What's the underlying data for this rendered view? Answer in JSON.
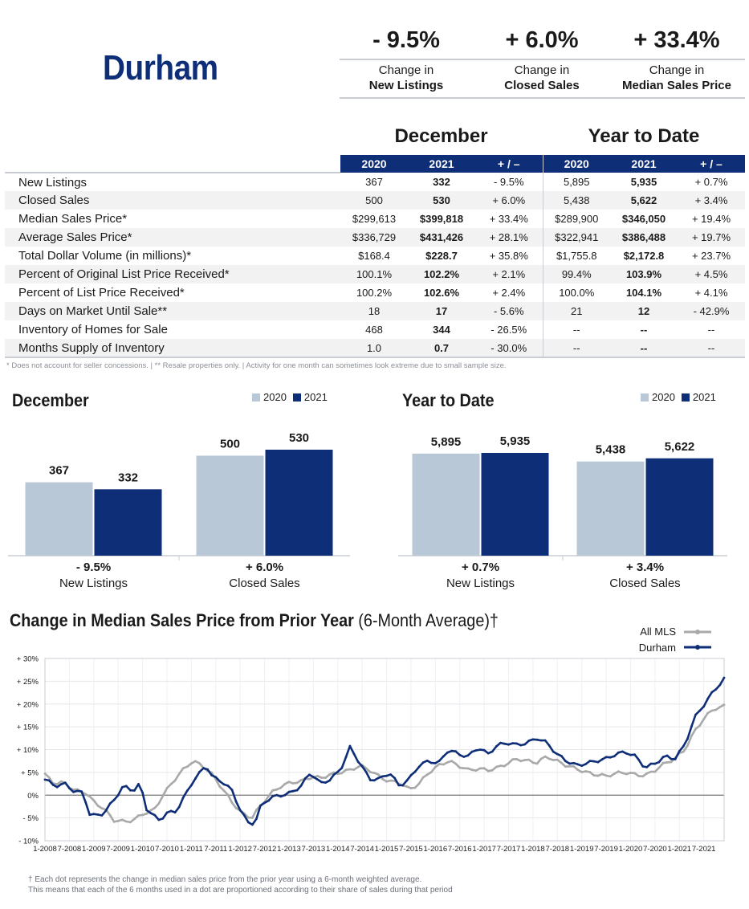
{
  "header": {
    "city": "Durham",
    "kpis": [
      {
        "pct": "- 9.5%",
        "line1": "Change in",
        "line2": "New Listings"
      },
      {
        "pct": "+ 6.0%",
        "line1": "Change in",
        "line2": "Closed Sales"
      },
      {
        "pct": "+ 33.4%",
        "line1": "Change in",
        "line2": "Median Sales Price"
      }
    ]
  },
  "table": {
    "period1": "December",
    "period2": "Year to Date",
    "cols": [
      "2020",
      "2021",
      "+ / –",
      "2020",
      "2021",
      "+ / –"
    ],
    "rows": [
      {
        "label": "New Listings",
        "v": [
          "367",
          "332",
          "- 9.5%",
          "5,895",
          "5,935",
          "+ 0.7%"
        ]
      },
      {
        "label": "Closed Sales",
        "v": [
          "500",
          "530",
          "+ 6.0%",
          "5,438",
          "5,622",
          "+ 3.4%"
        ]
      },
      {
        "label": "Median Sales Price*",
        "v": [
          "$299,613",
          "$399,818",
          "+ 33.4%",
          "$289,900",
          "$346,050",
          "+ 19.4%"
        ]
      },
      {
        "label": "Average Sales Price*",
        "v": [
          "$336,729",
          "$431,426",
          "+ 28.1%",
          "$322,941",
          "$386,488",
          "+ 19.7%"
        ]
      },
      {
        "label": "Total Dollar Volume (in millions)*",
        "v": [
          "$168.4",
          "$228.7",
          "+ 35.8%",
          "$1,755.8",
          "$2,172.8",
          "+ 23.7%"
        ]
      },
      {
        "label": "Percent of Original List Price Received*",
        "v": [
          "100.1%",
          "102.2%",
          "+ 2.1%",
          "99.4%",
          "103.9%",
          "+ 4.5%"
        ]
      },
      {
        "label": "Percent of List Price Received*",
        "v": [
          "100.2%",
          "102.6%",
          "+ 2.4%",
          "100.0%",
          "104.1%",
          "+ 4.1%"
        ]
      },
      {
        "label": "Days on Market Until Sale**",
        "v": [
          "18",
          "17",
          "- 5.6%",
          "21",
          "12",
          "- 42.9%"
        ]
      },
      {
        "label": "Inventory of Homes for Sale",
        "v": [
          "468",
          "344",
          "- 26.5%",
          "--",
          "--",
          "--"
        ]
      },
      {
        "label": "Months Supply of Inventory",
        "v": [
          "1.0",
          "0.7",
          "- 30.0%",
          "--",
          "--",
          "--"
        ]
      }
    ],
    "footnote": "* Does not account for seller concessions.  |  ** Resale properties only.  |  Activity for one month can sometimes look extreme due to small sample size."
  },
  "colors": {
    "navy": "#0f2e78",
    "light": "#b8c8d6",
    "gray_line": "#a9a9a9"
  },
  "chart_data": [
    {
      "type": "bar",
      "title": "December",
      "legend": [
        "2020",
        "2021"
      ],
      "legend_placement": "top-right",
      "categories": [
        "New Listings",
        "Closed Sales"
      ],
      "category_changes": [
        "- 9.5%",
        "+ 6.0%"
      ],
      "series": [
        {
          "name": "2020",
          "values": [
            367,
            500
          ],
          "labels": [
            "367",
            "500"
          ]
        },
        {
          "name": "2021",
          "values": [
            332,
            530
          ],
          "labels": [
            "332",
            "530"
          ]
        }
      ]
    },
    {
      "type": "bar",
      "title": "Year to Date",
      "legend": [
        "2020",
        "2021"
      ],
      "legend_placement": "top-right",
      "categories": [
        "New Listings",
        "Closed Sales"
      ],
      "category_changes": [
        "+ 0.7%",
        "+ 3.4%"
      ],
      "series": [
        {
          "name": "2020",
          "values": [
            5895,
            5438
          ],
          "labels": [
            "5,895",
            "5,438"
          ]
        },
        {
          "name": "2021",
          "values": [
            5935,
            5622
          ],
          "labels": [
            "5,935",
            "5,622"
          ]
        }
      ]
    },
    {
      "type": "line",
      "title": "Change in Median Sales Price from Prior Year",
      "title_suffix": "(6-Month Average)†",
      "legend_placement": "top-right",
      "ylim": [
        -10,
        30
      ],
      "yticks": [
        "- 10%",
        "- 5%",
        "0%",
        "+ 5%",
        "+ 10%",
        "+ 15%",
        "+ 20%",
        "+ 25%",
        "+ 30%"
      ],
      "xtick_labels": [
        "1-2008",
        "7-2008",
        "1-2009",
        "7-2009",
        "1-2010",
        "7-2010",
        "1-2011",
        "7-2011",
        "1-2012",
        "7-2012",
        "1-2013",
        "7-2013",
        "1-2014",
        "7-2014",
        "1-2015",
        "7-2015",
        "1-2016",
        "7-2016",
        "1-2017",
        "7-2017",
        "1-2018",
        "7-2018",
        "1-2019",
        "7-2019",
        "1-2020",
        "7-2020",
        "1-2021",
        "7-2021"
      ],
      "x_start": "1-2008",
      "x_end": "12-2021",
      "grid": true,
      "series": [
        {
          "name": "All MLS",
          "color": "#a9a9a9",
          "knots": [
            [
              0,
              4.5
            ],
            [
              3,
              2.5
            ],
            [
              6,
              2.8
            ],
            [
              9,
              1
            ],
            [
              12,
              0.8
            ],
            [
              15,
              -1.5
            ],
            [
              18,
              -3
            ],
            [
              21,
              -5.5
            ],
            [
              24,
              -5.8
            ],
            [
              27,
              -5.5
            ],
            [
              30,
              -4
            ],
            [
              33,
              -3.5
            ],
            [
              36,
              0
            ],
            [
              39,
              3
            ],
            [
              42,
              5.5
            ],
            [
              45,
              7.5
            ],
            [
              48,
              6.5
            ],
            [
              51,
              4.5
            ],
            [
              54,
              1.5
            ],
            [
              57,
              -1.5
            ],
            [
              60,
              -4
            ],
            [
              63,
              -5
            ],
            [
              66,
              -2
            ],
            [
              69,
              0.5
            ],
            [
              72,
              2
            ],
            [
              75,
              2.8
            ],
            [
              78,
              3
            ],
            [
              81,
              4
            ],
            [
              84,
              3.8
            ],
            [
              87,
              4.5
            ],
            [
              90,
              5
            ],
            [
              93,
              5.5
            ],
            [
              96,
              6.5
            ],
            [
              99,
              5.5
            ],
            [
              102,
              4
            ],
            [
              105,
              3
            ],
            [
              108,
              2.8
            ],
            [
              111,
              1.2
            ],
            [
              114,
              2.5
            ],
            [
              117,
              5
            ],
            [
              120,
              6.5
            ],
            [
              123,
              7.5
            ],
            [
              126,
              6.5
            ],
            [
              129,
              5.5
            ],
            [
              132,
              5.8
            ],
            [
              135,
              5.5
            ],
            [
              138,
              6
            ],
            [
              141,
              7
            ],
            [
              144,
              8
            ],
            [
              147,
              7.5
            ],
            [
              150,
              7.2
            ],
            [
              153,
              8.5
            ],
            [
              156,
              7.5
            ],
            [
              159,
              6.5
            ],
            [
              162,
              5.8
            ],
            [
              165,
              5
            ],
            [
              168,
              4.5
            ],
            [
              171,
              4.2
            ],
            [
              174,
              4.8
            ],
            [
              177,
              5
            ],
            [
              180,
              4.5
            ],
            [
              183,
              4.3
            ],
            [
              186,
              5.5
            ],
            [
              189,
              7
            ],
            [
              192,
              8
            ],
            [
              195,
              10
            ],
            [
              198,
              14
            ],
            [
              201,
              17
            ],
            [
              204,
              19
            ],
            [
              207,
              19.5
            ]
          ]
        },
        {
          "name": "Durham",
          "color": "#0f2e78",
          "knots": [
            [
              0,
              3.5
            ],
            [
              3,
              2
            ],
            [
              6,
              2.5
            ],
            [
              9,
              0.8
            ],
            [
              12,
              0.5
            ],
            [
              13,
              -4
            ],
            [
              15,
              -4.5
            ],
            [
              18,
              -4
            ],
            [
              20,
              -2
            ],
            [
              24,
              2
            ],
            [
              27,
              1
            ],
            [
              29,
              2.5
            ],
            [
              31,
              -3
            ],
            [
              33,
              -4.5
            ],
            [
              35,
              -5.5
            ],
            [
              37,
              -4
            ],
            [
              40,
              -3.5
            ],
            [
              42,
              -1
            ],
            [
              45,
              3
            ],
            [
              48,
              5.5
            ],
            [
              49,
              6.8
            ],
            [
              51,
              4
            ],
            [
              54,
              3
            ],
            [
              57,
              1
            ],
            [
              60,
              -4
            ],
            [
              62,
              -6
            ],
            [
              64,
              -6.2
            ],
            [
              66,
              -2
            ],
            [
              69,
              -0.5
            ],
            [
              72,
              0
            ],
            [
              75,
              0.5
            ],
            [
              78,
              2
            ],
            [
              81,
              5
            ],
            [
              84,
              2.5
            ],
            [
              87,
              3.5
            ],
            [
              90,
              5.5
            ],
            [
              93,
              10.5
            ],
            [
              96,
              7
            ],
            [
              99,
              3.5
            ],
            [
              102,
              3.5
            ],
            [
              105,
              5
            ],
            [
              108,
              2
            ],
            [
              111,
              3.5
            ],
            [
              114,
              6.5
            ],
            [
              117,
              7.5
            ],
            [
              120,
              7
            ],
            [
              123,
              10
            ],
            [
              126,
              9
            ],
            [
              129,
              8.5
            ],
            [
              132,
              10.5
            ],
            [
              135,
              9
            ],
            [
              138,
              11
            ],
            [
              141,
              11.5
            ],
            [
              144,
              11
            ],
            [
              147,
              11.5
            ],
            [
              150,
              12.5
            ],
            [
              153,
              11.5
            ],
            [
              156,
              9
            ],
            [
              159,
              7.5
            ],
            [
              162,
              6.5
            ],
            [
              165,
              7
            ],
            [
              168,
              7.5
            ],
            [
              171,
              8
            ],
            [
              174,
              9
            ],
            [
              177,
              9.5
            ],
            [
              180,
              8.5
            ],
            [
              183,
              6
            ],
            [
              186,
              7
            ],
            [
              189,
              8.5
            ],
            [
              192,
              8
            ],
            [
              195,
              11
            ],
            [
              198,
              17
            ],
            [
              201,
              20
            ],
            [
              204,
              23
            ],
            [
              207,
              25.5
            ]
          ]
        }
      ]
    }
  ],
  "line_footnote": [
    "† Each dot represents the change in median sales price from the prior year using a 6-month weighted average.",
    "This means that each of the 6 months used in a dot are proportioned according to their share of sales during that period"
  ]
}
